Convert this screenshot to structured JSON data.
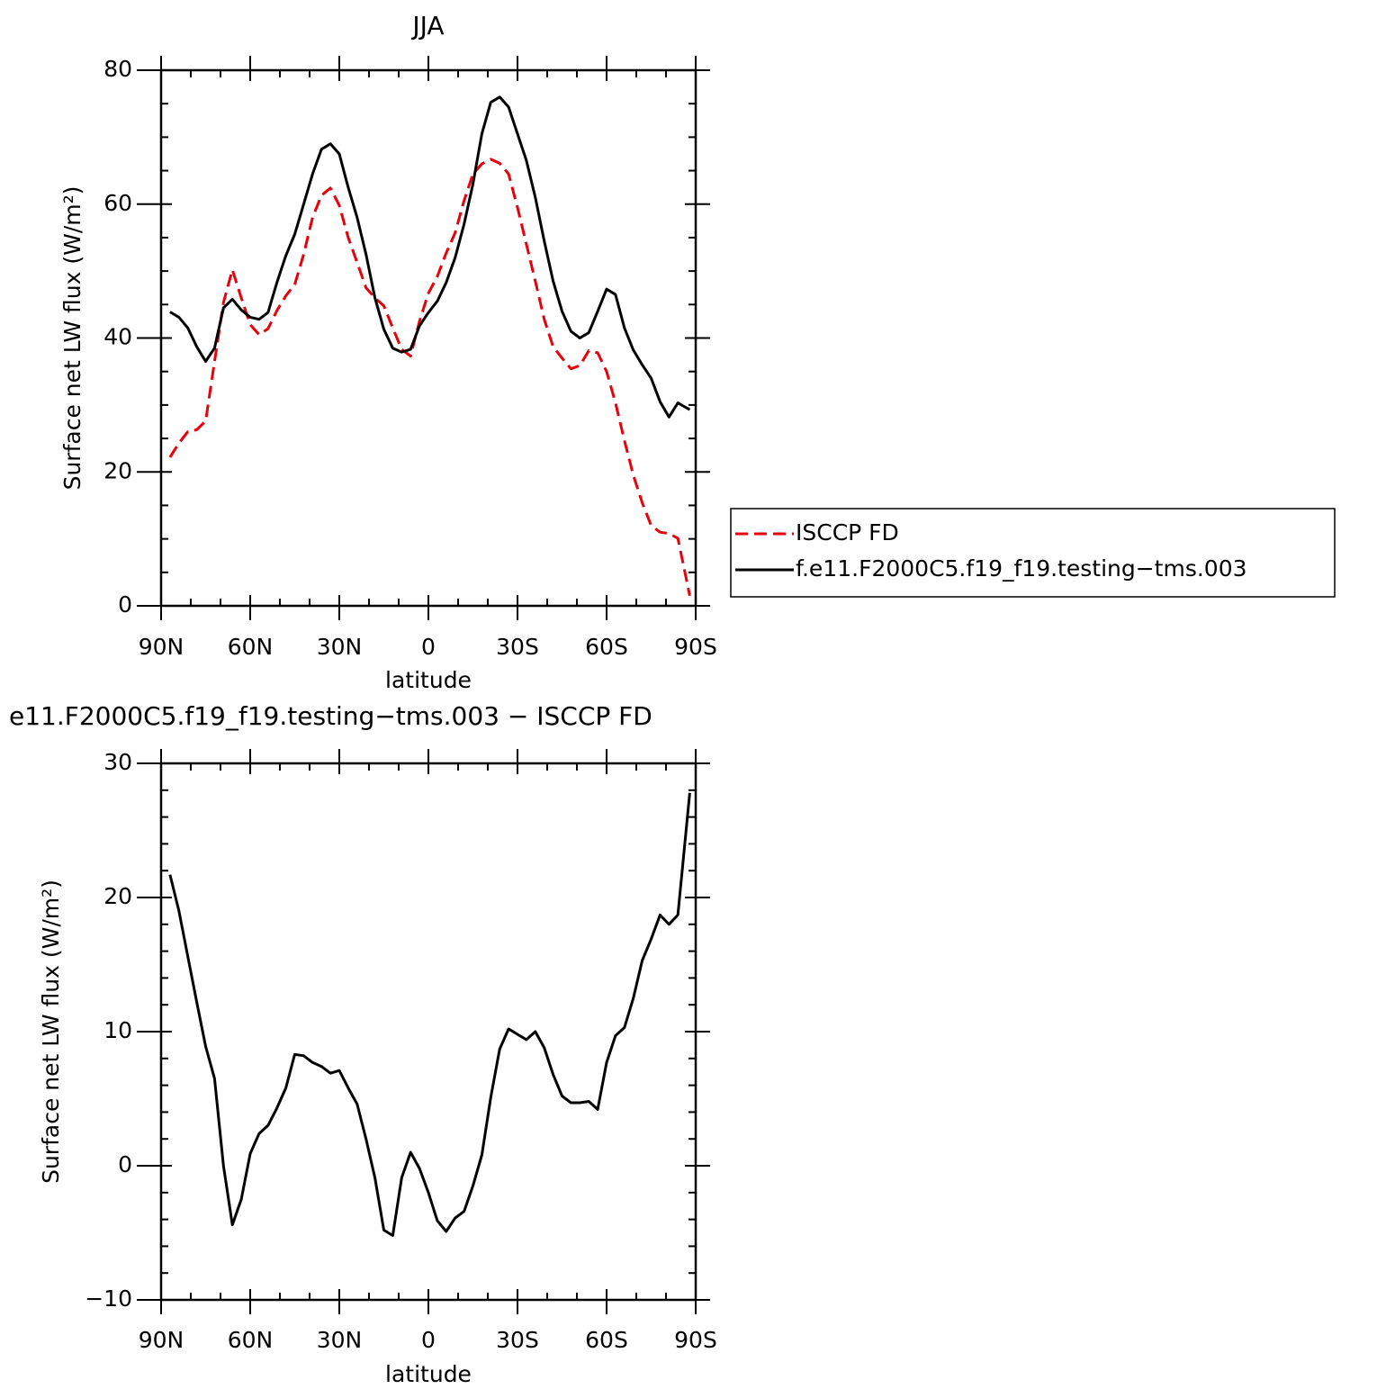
{
  "chart_data": [
    {
      "type": "line",
      "title": "JJA",
      "xlabel": "latitude",
      "ylabel": "Surface net LW flux (W/m²)",
      "x": [
        87,
        84,
        81,
        78,
        75,
        72,
        69,
        66,
        63,
        60,
        57,
        54,
        51,
        48,
        45,
        42,
        39,
        36,
        33,
        30,
        27,
        24,
        21,
        18,
        15,
        12,
        9,
        6,
        3,
        0,
        -3,
        -6,
        -9,
        -12,
        -15,
        -18,
        -21,
        -24,
        -27,
        -30,
        -33,
        -36,
        -39,
        -42,
        -45,
        -48,
        -51,
        -54,
        -57,
        -60,
        -63,
        -66,
        -69,
        -72,
        -75,
        -78,
        -81,
        -84,
        -88
      ],
      "series": [
        {
          "name": "ISCCP FD",
          "color": "#e8000b",
          "dashed": true,
          "values": [
            22.2,
            24.3,
            26,
            26.3,
            27.6,
            36.5,
            45.3,
            50.2,
            46,
            42,
            40.5,
            41.4,
            44.1,
            46.3,
            48,
            52.5,
            58,
            61.3,
            62.4,
            59.8,
            55,
            51.3,
            47.5,
            46,
            44.8,
            41.5,
            38.3,
            37.3,
            42.5,
            46.7,
            49.2,
            52.7,
            55.7,
            60.5,
            64.5,
            66,
            66.7,
            66.1,
            64.5,
            59.5,
            54,
            48.5,
            42.8,
            38.7,
            37,
            35.4,
            35.9,
            38.1,
            37.8,
            35,
            30.3,
            24.7,
            19.5,
            15.4,
            12,
            11,
            10.8,
            10.1,
            1.5
          ]
        },
        {
          "name": "f.e11.F2000C5.f19_f19.testing−tms.003",
          "color": "#000000",
          "dashed": false,
          "values": [
            43.9,
            43.1,
            41.5,
            38.7,
            36.5,
            38.5,
            44.5,
            45.8,
            44.2,
            43.1,
            42.8,
            43.8,
            48.3,
            52.3,
            55.5,
            60,
            64.5,
            68.2,
            69,
            67.5,
            62.5,
            58,
            52.5,
            46,
            41.3,
            38.5,
            37.9,
            38.3,
            41.8,
            43.8,
            45.5,
            48.3,
            52,
            57,
            63,
            70.5,
            75.2,
            76,
            74.5,
            70.5,
            66.5,
            61,
            54.5,
            48.5,
            44,
            41,
            40,
            40.8,
            44,
            47.3,
            46.5,
            41.5,
            38.2,
            36,
            34,
            30.5,
            28.2,
            30.3,
            29.3
          ]
        }
      ],
      "xlim": [
        90,
        -90
      ],
      "xticks": [
        {
          "value": 90,
          "label": "90N"
        },
        {
          "value": 60,
          "label": "60N"
        },
        {
          "value": 30,
          "label": "30N"
        },
        0,
        {
          "value": -30,
          "label": "30S"
        },
        {
          "value": -60,
          "label": "60S"
        },
        {
          "value": -90,
          "label": "90S"
        }
      ],
      "xminorticks": [
        80,
        70,
        50,
        40,
        20,
        10,
        -10,
        -20,
        -40,
        -50,
        -70,
        -80
      ],
      "ylim": [
        0,
        80
      ],
      "yticks": [
        0,
        20,
        40,
        60,
        80
      ],
      "yminorticks": [
        5,
        10,
        15,
        25,
        30,
        35,
        45,
        50,
        55,
        65,
        70,
        75
      ],
      "legend": "right"
    },
    {
      "type": "line",
      "title": "e11.F2000C5.f19_f19.testing−tms.003 − ISCCP FD",
      "xlabel": "latitude",
      "ylabel": "Surface net LW flux (W/m²)",
      "x": [
        87,
        84,
        81,
        78,
        75,
        72,
        69,
        66,
        63,
        60,
        57,
        54,
        51,
        48,
        45,
        42,
        39,
        36,
        33,
        30,
        27,
        24,
        21,
        18,
        15,
        12,
        9,
        6,
        3,
        0,
        -3,
        -6,
        -9,
        -12,
        -15,
        -18,
        -21,
        -24,
        -27,
        -30,
        -33,
        -36,
        -39,
        -42,
        -45,
        -48,
        -51,
        -54,
        -57,
        -60,
        -63,
        -66,
        -69,
        -72,
        -75,
        -78,
        -81,
        -84,
        -88
      ],
      "series": [
        {
          "color": "#000000",
          "dashed": false,
          "values": [
            21.7,
            19,
            15.6,
            12.2,
            8.9,
            6.5,
            0,
            -4.4,
            -2.5,
            0.9,
            2.4,
            3,
            4.3,
            5.8,
            8.3,
            8.2,
            7.7,
            7.4,
            6.9,
            7.1,
            5.8,
            4.6,
            2,
            -0.9,
            -4.8,
            -5.2,
            -0.9,
            1,
            -0.2,
            -2,
            -4.1,
            -4.9,
            -3.9,
            -3.4,
            -1.5,
            0.8,
            5.1,
            8.7,
            10.2,
            9.8,
            9.4,
            10,
            8.8,
            6.8,
            5.2,
            4.7,
            4.7,
            4.8,
            4.2,
            7.7,
            9.7,
            10.3,
            12.5,
            15.3,
            16.9,
            18.7,
            18,
            18.7,
            27.8
          ]
        }
      ],
      "xlim": [
        90,
        -90
      ],
      "xticks": [
        {
          "value": 90,
          "label": "90N"
        },
        {
          "value": 60,
          "label": "60N"
        },
        {
          "value": 30,
          "label": "30N"
        },
        0,
        {
          "value": -30,
          "label": "30S"
        },
        {
          "value": -60,
          "label": "60S"
        },
        {
          "value": -90,
          "label": "90S"
        }
      ],
      "xminorticks": [
        80,
        70,
        50,
        40,
        20,
        10,
        -10,
        -20,
        -40,
        -50,
        -70,
        -80
      ],
      "ylim": [
        -10,
        30
      ],
      "yticks": [
        {
          "value": -10,
          "label": "−10"
        },
        0,
        10,
        20,
        30
      ],
      "yminorticks": [
        -8,
        -6,
        -4,
        -2,
        2,
        4,
        6,
        8,
        12,
        14,
        16,
        18,
        22,
        24,
        26,
        28
      ]
    }
  ]
}
